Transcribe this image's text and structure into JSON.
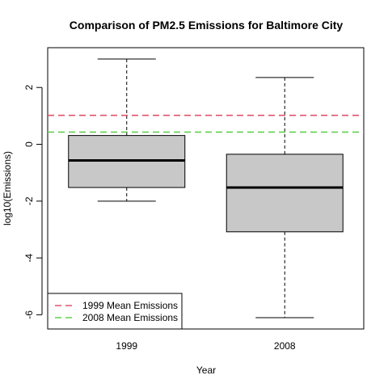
{
  "chart_data": {
    "type": "box",
    "title": "Comparison of PM2.5 Emissions for Baltimore City",
    "xlabel": "Year",
    "ylabel": "log10(Emissions)",
    "ylim": [
      -6.5,
      3.4
    ],
    "yticks": [
      -6,
      -4,
      -2,
      0,
      2
    ],
    "categories": [
      "1999",
      "2008"
    ],
    "boxes": [
      {
        "label": "1999",
        "min": -2.0,
        "q1": -1.52,
        "median": -0.57,
        "q3": 0.31,
        "max": 3.0
      },
      {
        "label": "2008",
        "min": -6.1,
        "q1": -3.08,
        "median": -1.52,
        "q3": -0.35,
        "max": 2.35
      }
    ],
    "hlines": [
      {
        "name": "1999 Mean Emissions",
        "y": 1.02,
        "color": "#df536b"
      },
      {
        "name": "2008 Mean Emissions",
        "y": 0.43,
        "color": "#61d04f"
      }
    ],
    "legend_position": "bottom-left",
    "box_fill": "#c8c8c8",
    "grid": false
  }
}
